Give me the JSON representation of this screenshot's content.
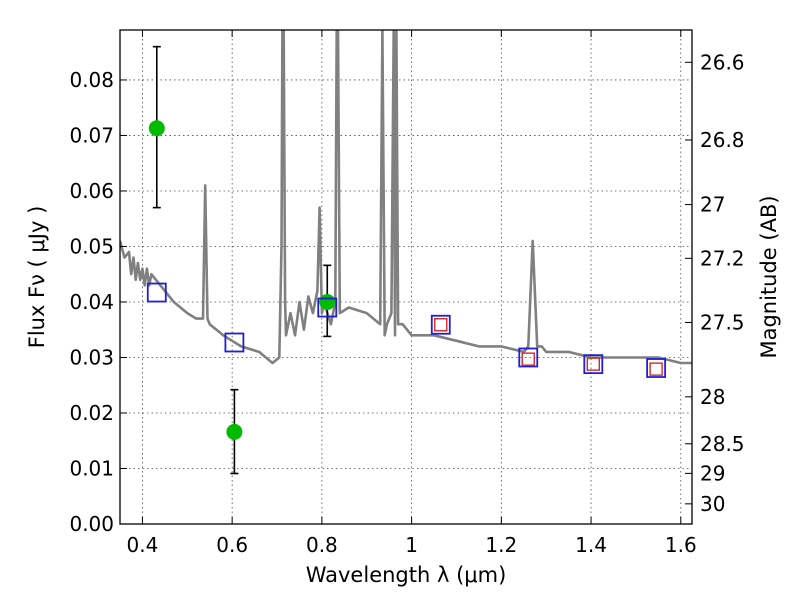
{
  "chart_data": {
    "type": "scatter",
    "title": "",
    "xlabel": "Wavelength  λ (μm)",
    "ylabel": "Flux  Fν  ( μJy )",
    "ylabel_right": "Magnitude (AB)",
    "xlim": [
      0.35,
      1.625
    ],
    "ylim": [
      0.0,
      0.089
    ],
    "grid": true,
    "x_ticks": [
      {
        "value": 0.4,
        "label": "0.4"
      },
      {
        "value": 0.6,
        "label": "0.6"
      },
      {
        "value": 0.8,
        "label": "0.8"
      },
      {
        "value": 1.0,
        "label": "1"
      },
      {
        "value": 1.2,
        "label": "1.2"
      },
      {
        "value": 1.4,
        "label": "1.4"
      },
      {
        "value": 1.6,
        "label": "1.6"
      }
    ],
    "y_ticks": [
      {
        "value": 0.0,
        "label": "0.00"
      },
      {
        "value": 0.01,
        "label": "0.01"
      },
      {
        "value": 0.02,
        "label": "0.02"
      },
      {
        "value": 0.03,
        "label": "0.03"
      },
      {
        "value": 0.04,
        "label": "0.04"
      },
      {
        "value": 0.05,
        "label": "0.05"
      },
      {
        "value": 0.06,
        "label": "0.06"
      },
      {
        "value": 0.07,
        "label": "0.07"
      },
      {
        "value": 0.08,
        "label": "0.08"
      }
    ],
    "right_ticks": [
      {
        "value": 26.6,
        "label": "26.6"
      },
      {
        "value": 26.8,
        "label": "26.8"
      },
      {
        "value": 27.0,
        "label": "27"
      },
      {
        "value": 27.2,
        "label": "27.2"
      },
      {
        "value": 27.5,
        "label": "27.5"
      },
      {
        "value": 28.0,
        "label": "28"
      },
      {
        "value": 28.5,
        "label": "28.5"
      },
      {
        "value": 29.0,
        "label": "29"
      },
      {
        "value": 30.0,
        "label": "30"
      }
    ],
    "series": [
      {
        "kind": "line",
        "color": "#808080",
        "x": [
          0.35,
          0.36,
          0.37,
          0.375,
          0.38,
          0.385,
          0.39,
          0.395,
          0.4,
          0.405,
          0.41,
          0.415,
          0.42,
          0.43,
          0.45,
          0.47,
          0.5,
          0.52,
          0.535,
          0.54,
          0.545,
          0.55,
          0.58,
          0.62,
          0.66,
          0.69,
          0.705,
          0.71,
          0.712,
          0.715,
          0.718,
          0.72,
          0.73,
          0.74,
          0.75,
          0.76,
          0.77,
          0.78,
          0.79,
          0.795,
          0.8,
          0.805,
          0.82,
          0.83,
          0.833,
          0.836,
          0.84,
          0.86,
          0.9,
          0.93,
          0.935,
          0.94,
          0.945,
          0.95,
          0.955,
          0.96,
          0.963,
          0.966,
          0.97,
          0.98,
          1.0,
          1.05,
          1.1,
          1.15,
          1.2,
          1.25,
          1.26,
          1.27,
          1.28,
          1.29,
          1.3,
          1.35,
          1.4,
          1.5,
          1.55,
          1.6,
          1.625
        ],
        "y": [
          0.051,
          0.048,
          0.049,
          0.045,
          0.048,
          0.044,
          0.047,
          0.044,
          0.046,
          0.043,
          0.046,
          0.043,
          0.045,
          0.044,
          0.042,
          0.04,
          0.038,
          0.037,
          0.037,
          0.061,
          0.037,
          0.036,
          0.034,
          0.032,
          0.031,
          0.029,
          0.03,
          0.05,
          0.089,
          0.089,
          0.04,
          0.034,
          0.038,
          0.034,
          0.04,
          0.035,
          0.041,
          0.038,
          0.042,
          0.057,
          0.038,
          0.04,
          0.036,
          0.04,
          0.089,
          0.089,
          0.038,
          0.039,
          0.038,
          0.036,
          0.089,
          0.034,
          0.036,
          0.037,
          0.038,
          0.089,
          0.034,
          0.089,
          0.036,
          0.036,
          0.034,
          0.034,
          0.033,
          0.032,
          0.032,
          0.031,
          0.032,
          0.051,
          0.032,
          0.032,
          0.031,
          0.031,
          0.03,
          0.03,
          0.03,
          0.029,
          0.029
        ]
      },
      {
        "kind": "points",
        "marker": "circle",
        "color": "#00bb00",
        "x": [
          0.432,
          0.605,
          0.812
        ],
        "y": [
          0.0713,
          0.0166,
          0.04
        ],
        "yerr_low": [
          0.0143,
          0.0075,
          0.0062
        ],
        "yerr_high": [
          0.0147,
          0.0076,
          0.0066
        ]
      },
      {
        "kind": "points",
        "marker": "open-square",
        "color": "#1f1fd8",
        "x": [
          0.432,
          0.605,
          0.812,
          1.065,
          1.26,
          1.405,
          1.545
        ],
        "y": [
          0.0417,
          0.0327,
          0.039,
          0.0359,
          0.03,
          0.0288,
          0.0281
        ]
      },
      {
        "kind": "points",
        "marker": "open-square-small",
        "color": "#d62728",
        "x": [
          1.065,
          1.26,
          1.405,
          1.545
        ],
        "y": [
          0.0359,
          0.0297,
          0.0288,
          0.0279
        ]
      }
    ]
  }
}
